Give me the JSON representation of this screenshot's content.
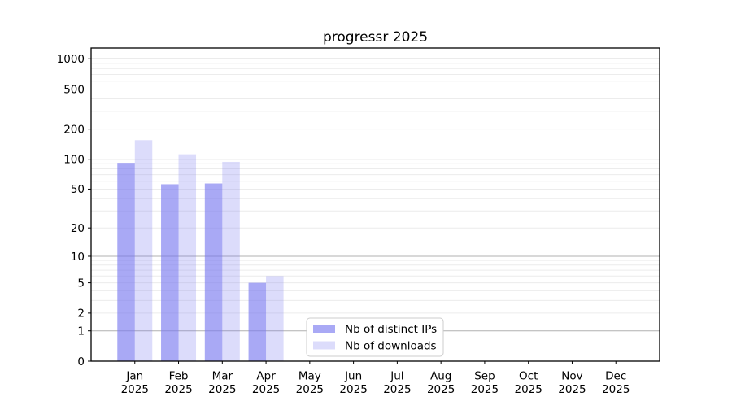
{
  "figure_title": "progressr 2025",
  "chart_data": {
    "type": "bar",
    "title": "progressr 2025",
    "categories": [
      "Jan",
      "Feb",
      "Mar",
      "Apr",
      "May",
      "Jun",
      "Jul",
      "Aug",
      "Sep",
      "Oct",
      "Nov",
      "Dec"
    ],
    "x_sublabel": "2025",
    "series": [
      {
        "key": "ips",
        "name": "Nb of distinct IPs",
        "color": "rgba(120,120,240,0.64)",
        "values": [
          92,
          56,
          57,
          5,
          0,
          0,
          0,
          0,
          0,
          0,
          0,
          0
        ]
      },
      {
        "key": "downloads",
        "name": "Nb of downloads",
        "color": "rgba(120,120,240,0.26)",
        "values": [
          155,
          112,
          94,
          6,
          0,
          0,
          0,
          0,
          0,
          0,
          0,
          0
        ]
      }
    ],
    "y_scale": "log1p",
    "y_ticks": [
      0,
      1,
      2,
      5,
      10,
      20,
      50,
      100,
      200,
      500,
      1000
    ],
    "y_major_gridlines": [
      1,
      10,
      100,
      1000
    ],
    "y_minor_gridline_bases": [
      1,
      10,
      100
    ],
    "y_max": 1280,
    "ylim": [
      0,
      1280
    ],
    "xlabel": "",
    "ylabel": "",
    "grid": "on",
    "legend_position": "bottom-center-inside",
    "colors": {
      "grid_major": "#b0b0b0",
      "grid_minor": "#ececec",
      "axis": "#000000",
      "legend_border": "#cccccc",
      "legend_background": "#ffffff"
    }
  }
}
